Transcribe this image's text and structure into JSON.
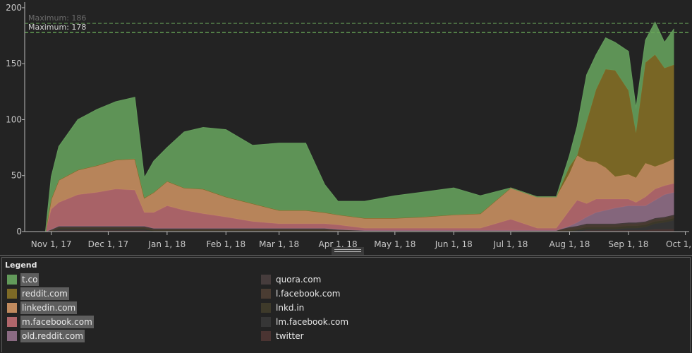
{
  "chart_data": {
    "type": "area",
    "stacked": true,
    "xlim": [
      "2017-10-18",
      "2018-10-03"
    ],
    "ylim": [
      0,
      205
    ],
    "yticks": [
      0,
      50,
      100,
      150,
      200
    ],
    "xticks": [
      {
        "date": "2017-11-01",
        "label": "Nov 1, 17"
      },
      {
        "date": "2017-12-01",
        "label": "Dec 1, 17"
      },
      {
        "date": "2018-01-01",
        "label": "Jan 1, 18"
      },
      {
        "date": "2018-02-01",
        "label": "Feb 1, 18"
      },
      {
        "date": "2018-03-01",
        "label": "Mar 1, 18"
      },
      {
        "date": "2018-04-01",
        "label": "Apr 1, 18"
      },
      {
        "date": "2018-05-01",
        "label": "May 1, 18"
      },
      {
        "date": "2018-06-01",
        "label": "Jun 1, 18"
      },
      {
        "date": "2018-07-01",
        "label": "Jul 1, 18"
      },
      {
        "date": "2018-08-01",
        "label": "Aug 1, 18"
      },
      {
        "date": "2018-09-01",
        "label": "Sep 1, 18"
      },
      {
        "date": "2018-10-01",
        "label": "Oct 1, 18"
      }
    ],
    "reference_lines": [
      {
        "label": "Maximum: 186",
        "value": 186,
        "color": "#5a8a4e",
        "text_color": "#6b6b6b"
      },
      {
        "label": "Maximum: 178",
        "value": 178,
        "color": "#6aaa5a",
        "text_color": "#d2d2d2"
      }
    ],
    "x": [
      "2017-10-29",
      "2017-11-01",
      "2017-11-05",
      "2017-11-15",
      "2017-11-25",
      "2017-12-05",
      "2017-12-15",
      "2017-12-20",
      "2017-12-25",
      "2018-01-01",
      "2018-01-10",
      "2018-01-20",
      "2018-02-01",
      "2018-02-15",
      "2018-03-01",
      "2018-03-15",
      "2018-03-25",
      "2018-04-01",
      "2018-04-15",
      "2018-05-01",
      "2018-05-15",
      "2018-06-01",
      "2018-06-15",
      "2018-07-01",
      "2018-07-15",
      "2018-07-25",
      "2018-08-01",
      "2018-08-05",
      "2018-08-10",
      "2018-08-15",
      "2018-08-20",
      "2018-08-25",
      "2018-09-01",
      "2018-09-05",
      "2018-09-10",
      "2018-09-15",
      "2018-09-20",
      "2018-09-25"
    ],
    "series": [
      {
        "name": "twitter",
        "color": "#4a3432",
        "values": [
          0,
          0,
          1,
          1,
          1,
          1,
          1,
          1,
          0,
          0,
          0,
          0,
          0,
          0,
          0,
          0,
          0,
          0,
          0,
          0,
          0,
          0,
          0,
          0,
          0,
          0,
          0,
          0,
          1,
          1,
          1,
          1,
          1,
          1,
          1,
          2,
          2,
          2
        ]
      },
      {
        "name": "lm.facebook.com",
        "color": "#363636",
        "values": [
          0,
          0,
          1,
          1,
          1,
          1,
          1,
          1,
          0,
          0,
          0,
          0,
          0,
          0,
          0,
          0,
          0,
          0,
          0,
          0,
          0,
          0,
          0,
          0,
          0,
          0,
          0,
          1,
          1,
          1,
          1,
          1,
          2,
          2,
          3,
          5,
          6,
          8
        ]
      },
      {
        "name": "lnkd.in",
        "color": "#3e3a2a",
        "values": [
          0,
          0,
          1,
          1,
          1,
          1,
          1,
          1,
          1,
          1,
          1,
          1,
          1,
          1,
          1,
          1,
          1,
          0,
          0,
          0,
          0,
          0,
          0,
          0,
          0,
          0,
          1,
          1,
          2,
          2,
          2,
          2,
          2,
          2,
          2,
          2,
          2,
          2
        ]
      },
      {
        "name": "l.facebook.com",
        "color": "#4a3c32",
        "values": [
          0,
          1,
          1,
          1,
          1,
          1,
          1,
          1,
          1,
          1,
          1,
          1,
          1,
          1,
          1,
          1,
          1,
          1,
          1,
          1,
          1,
          1,
          1,
          1,
          1,
          1,
          2,
          2,
          2,
          2,
          2,
          2,
          2,
          2,
          2,
          2,
          2,
          2
        ]
      },
      {
        "name": "quora.com",
        "color": "#463c3c",
        "values": [
          0,
          1,
          1,
          1,
          1,
          1,
          1,
          1,
          1,
          1,
          1,
          1,
          1,
          1,
          1,
          1,
          1,
          1,
          0,
          0,
          0,
          0,
          0,
          0,
          0,
          0,
          1,
          1,
          1,
          1,
          1,
          1,
          1,
          1,
          1,
          1,
          1,
          1
        ]
      },
      {
        "name": "old.reddit.com",
        "color": "#8a6a82",
        "values": [
          0,
          0,
          0,
          0,
          0,
          0,
          0,
          0,
          0,
          0,
          0,
          0,
          0,
          0,
          0,
          0,
          0,
          0,
          0,
          0,
          0,
          0,
          0,
          0,
          0,
          0,
          1,
          3,
          6,
          10,
          12,
          14,
          15,
          15,
          14,
          16,
          20,
          20
        ]
      },
      {
        "name": "m.facebook.com",
        "color": "#b0666b",
        "values": [
          0,
          18,
          21,
          28,
          30,
          33,
          32,
          12,
          14,
          20,
          16,
          13,
          10,
          6,
          4,
          4,
          4,
          4,
          2,
          2,
          2,
          2,
          2,
          10,
          2,
          2,
          14,
          20,
          12,
          12,
          10,
          8,
          6,
          3,
          8,
          10,
          8,
          8
        ]
      },
      {
        "name": "linkedin.com",
        "color": "#c08a5e",
        "values": [
          0,
          9,
          20,
          22,
          24,
          26,
          28,
          13,
          18,
          22,
          20,
          22,
          18,
          16,
          12,
          12,
          10,
          9,
          9,
          9,
          10,
          12,
          13,
          28,
          28,
          28,
          33,
          40,
          38,
          33,
          28,
          20,
          22,
          22,
          30,
          20,
          20,
          22
        ]
      },
      {
        "name": "reddit.com",
        "color": "#7e6a26",
        "values": [
          0,
          0,
          0,
          0,
          0,
          0,
          0,
          0,
          0,
          0,
          0,
          0,
          0,
          0,
          0,
          0,
          0,
          0,
          0,
          0,
          0,
          0,
          0,
          0,
          0,
          0,
          6,
          0,
          35,
          65,
          88,
          95,
          75,
          40,
          90,
          100,
          85,
          84
        ]
      },
      {
        "name": "t.co",
        "color": "#629a5a",
        "values": [
          0,
          20,
          30,
          45,
          50,
          52,
          55,
          18,
          28,
          30,
          50,
          55,
          60,
          52,
          60,
          60,
          25,
          12,
          15,
          20,
          22,
          24,
          16,
          0,
          0,
          0,
          10,
          26,
          42,
          31,
          28,
          25,
          35,
          22,
          20,
          29,
          23,
          32
        ]
      }
    ]
  },
  "legend": {
    "title": "Legend",
    "items": [
      {
        "label": "t.co",
        "color": "#629a5a",
        "highlight": true
      },
      {
        "label": "reddit.com",
        "color": "#7e6a26",
        "highlight": true
      },
      {
        "label": "linkedin.com",
        "color": "#c08a5e",
        "highlight": true
      },
      {
        "label": "m.facebook.com",
        "color": "#b0666b",
        "highlight": true
      },
      {
        "label": "old.reddit.com",
        "color": "#8a6a82",
        "highlight": true
      },
      {
        "label": "quora.com",
        "color": "#463c3c",
        "highlight": false
      },
      {
        "label": "l.facebook.com",
        "color": "#4a3c32",
        "highlight": false
      },
      {
        "label": "lnkd.in",
        "color": "#3e3a2a",
        "highlight": false
      },
      {
        "label": "lm.facebook.com",
        "color": "#363636",
        "highlight": false
      },
      {
        "label": "twitter",
        "color": "#4a3432",
        "highlight": false
      }
    ]
  }
}
